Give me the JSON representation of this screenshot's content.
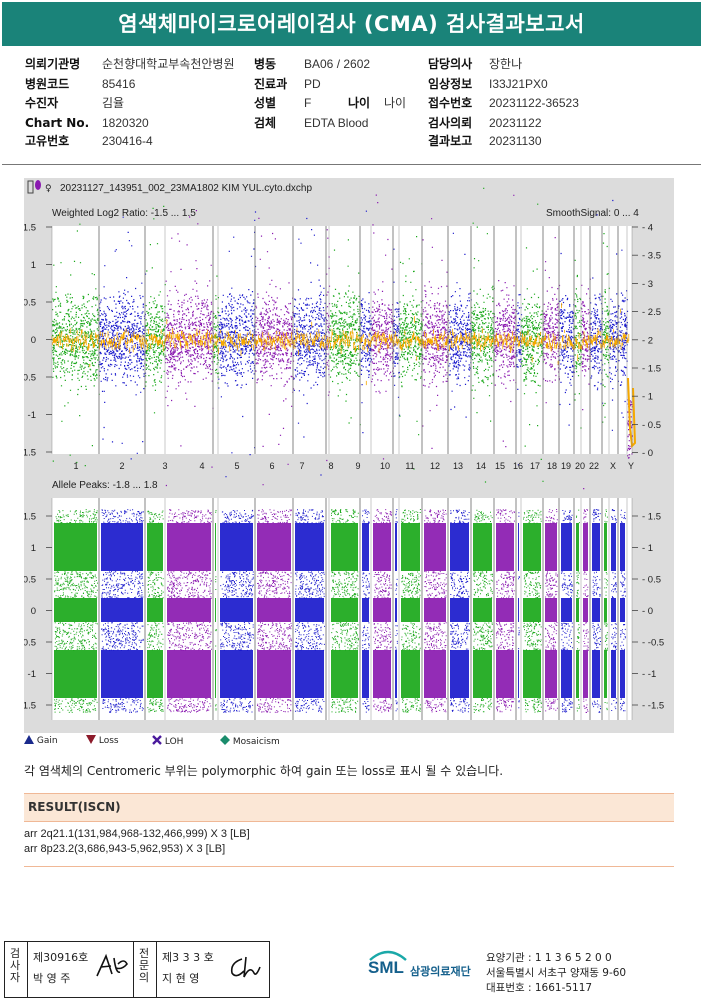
{
  "report_title": "염색체마이크로어레이검사 (CMA) 검사결과보고서",
  "header": {
    "institution_label": "의뢰기관명",
    "institution_value": "순천향대학교부속천안병원",
    "hospital_code_label": "병원코드",
    "hospital_code_value": "85416",
    "recipient_label": "수진자",
    "recipient_value": "김율",
    "chart_label": "Chart No.",
    "chart_value": "1820320",
    "unique_label": "고유번호",
    "unique_value": "230416-4",
    "ward_label": "병동",
    "ward_value": "BA06 / 2602",
    "dept_label": "진료과",
    "dept_value": "PD",
    "sex_label": "성별",
    "sex_value": "F",
    "age_label": "나이",
    "age_value": "나이",
    "specimen_label": "검체",
    "specimen_value": "EDTA Blood",
    "doctor_label": "담당의사",
    "doctor_value": "장한나",
    "clinical_label": "임상정보",
    "clinical_value": "I33J21PX0",
    "accession_label": "접수번호",
    "accession_value": "20231122-36523",
    "request_label": "검사의뢰",
    "request_value": "20231122",
    "report_label": "결과보고",
    "report_value": "20231130"
  },
  "plot": {
    "filename": "20231127_143951_002_23MA1802 KIM YUL.cyto.dxchp",
    "top_label": "Weighted Log2 Ratio: -1.5 ... 1.5",
    "smooth_label": "SmoothSignal: 0 ... 4",
    "allele_label": "Allele Peaks: -1.8 ... 1.8",
    "top_left_ticks": [
      "1.5",
      "1",
      "0.5",
      "0",
      "-0.5",
      "-1",
      "-1.5"
    ],
    "top_right_ticks": [
      "4",
      "3.5",
      "3",
      "2.5",
      "2",
      "1.5",
      "1",
      "0.5",
      "0"
    ],
    "bottom_left_ticks": [
      "1.5",
      "1",
      "0.5",
      "0",
      "-0.5",
      "-1",
      "-1.5"
    ],
    "bottom_right_ticks": [
      "1.5",
      "1",
      "0.5",
      "0",
      "-0.5",
      "-1",
      "-1.5"
    ],
    "chromosome_labels": [
      "1",
      "2",
      "3",
      "4",
      "5",
      "6",
      "7",
      "8",
      "9",
      "10",
      "11",
      "12",
      "13",
      "14",
      "15",
      "16",
      "17",
      "18",
      "19",
      "20",
      "22",
      "X",
      "Y"
    ],
    "colors": {
      "green": "#1aa81a",
      "blue": "#1a1acc",
      "purple": "#8a1ab0",
      "orange": "#f5a800",
      "background": "#ffffff",
      "panel": "#dcdcdc"
    }
  },
  "legend": {
    "gain": "Gain",
    "loss": "Loss",
    "loh": "LOH",
    "mosaicism": "Mosaicism"
  },
  "note": "각 염색체의 Centromeric 부위는 polymorphic 하여 gain 또는 loss로 표시 될 수 있습니다.",
  "result": {
    "title": "RESULT(ISCN)",
    "lines": [
      "arr 2q21.1(131,984,968-132,466,999) X 3 [LB]",
      "arr 8p23.2(3,686,943-5,962,953) X 3 [LB]"
    ]
  },
  "signatures": {
    "left_label": "검사자",
    "left_no": "제30916호",
    "left_name": "박 영 주",
    "right_label": "전문의",
    "right_no": "제3 3 3 호",
    "right_name": "지 현 영"
  },
  "footer": {
    "logo_text": "SML",
    "company": "삼광의료재단",
    "code_line": "요양기관 : 1 1 3 6 5 2 0 0",
    "address_line": "서울특별시 서초구 양재동 9-60",
    "phone_line": "대표번호 : 1661-5117"
  }
}
